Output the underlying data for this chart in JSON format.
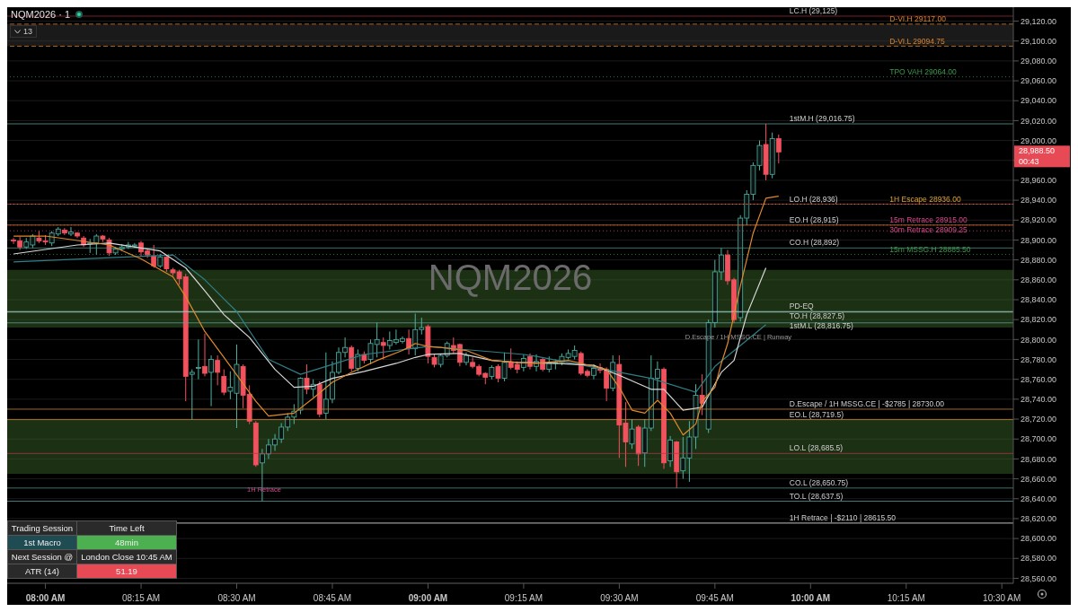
{
  "chart_data": {
    "type": "candlestick",
    "title": "NQM2026 · 1",
    "x": [
      7.9167,
      7.9333,
      7.95,
      7.9667,
      7.9833,
      8,
      8.0167,
      8.0333,
      8.05,
      8.0667,
      8.0833,
      8.1,
      8.1167,
      8.1333,
      8.15,
      8.1667,
      8.1833,
      8.2,
      8.2167,
      8.2333,
      8.25,
      8.2667,
      8.2833,
      8.3,
      8.3167,
      8.3333,
      8.35,
      8.3667,
      8.3833,
      8.4,
      8.4167,
      8.4333,
      8.45,
      8.4667,
      8.4833,
      8.5,
      8.5167,
      8.5333,
      8.55,
      8.5667,
      8.5833,
      8.6,
      8.6167,
      8.6333,
      8.65,
      8.6667,
      8.6833,
      8.7,
      8.7167,
      8.7333,
      8.75,
      8.7667,
      8.7833,
      8.8,
      8.8167,
      8.8333,
      8.85,
      8.8667,
      8.8833,
      8.9,
      8.9167,
      8.9333,
      8.95,
      8.9667,
      8.9833,
      9,
      9.0167,
      9.0333,
      9.05,
      9.0667,
      9.0833,
      9.1,
      9.1167,
      9.1333,
      9.15,
      9.1667,
      9.1833,
      9.2,
      9.2167,
      9.2333,
      9.25,
      9.2667,
      9.2833,
      9.3,
      9.3167,
      9.3333,
      9.35,
      9.3667,
      9.3833,
      9.4,
      9.4167,
      9.4333,
      9.45,
      9.4667,
      9.4833,
      9.5,
      9.5167,
      9.5333,
      9.55,
      9.5667,
      9.5833,
      9.6,
      9.6167,
      9.6333,
      9.65,
      9.6667,
      9.6833,
      9.7,
      9.7167,
      9.7333,
      9.75,
      9.7667,
      9.7833,
      9.8,
      9.8167,
      9.8333,
      9.85,
      9.8667,
      9.8833,
      9.9,
      9.9167
    ],
    "ohlc": [
      [
        28900,
        28902,
        28896,
        28899
      ],
      [
        28899,
        28903,
        28890,
        28893
      ],
      [
        28893,
        28902,
        28891,
        28898
      ],
      [
        28895,
        28906,
        28892,
        28904
      ],
      [
        28902,
        28909,
        28897,
        28899
      ],
      [
        28899,
        28905,
        28895,
        28898
      ],
      [
        28897,
        28909,
        28894,
        28907
      ],
      [
        28906,
        28913,
        28904,
        28911
      ],
      [
        28910,
        28912,
        28905,
        28907
      ],
      [
        28906,
        28913,
        28904,
        28908
      ],
      [
        28907,
        28908,
        28902,
        28904
      ],
      [
        28902,
        28904,
        28893,
        28895
      ],
      [
        28896,
        28901,
        28887,
        28897
      ],
      [
        28897,
        28906,
        28885,
        28904
      ],
      [
        28904,
        28905,
        28898,
        28901
      ],
      [
        28900,
        28902,
        28884,
        28887
      ],
      [
        28887,
        28893,
        28885,
        28891
      ],
      [
        28891,
        28896,
        28889,
        28893
      ],
      [
        28893,
        28898,
        28891,
        28895
      ],
      [
        28894,
        28897,
        28892,
        28895
      ],
      [
        28897,
        28899,
        28884,
        28888
      ],
      [
        28889,
        28891,
        28882,
        28885
      ],
      [
        28884,
        28895,
        28872,
        28874
      ],
      [
        28874,
        28886,
        28872,
        28883
      ],
      [
        28883,
        28884,
        28868,
        28871
      ],
      [
        28870,
        28872,
        28864,
        28867
      ],
      [
        28868,
        28870,
        28855,
        28861
      ],
      [
        28863,
        28866,
        28738,
        28763
      ],
      [
        28765,
        28770,
        28719.5,
        28767
      ],
      [
        28771,
        28800,
        28760,
        28772
      ],
      [
        28773,
        28806,
        28763,
        28766
      ],
      [
        28767,
        28784,
        28733,
        28780
      ],
      [
        28779,
        28784,
        28754,
        28767
      ],
      [
        28763,
        28770,
        28744,
        28747
      ],
      [
        28748,
        28768,
        28740,
        28752
      ],
      [
        28746,
        28795,
        28711,
        28775
      ],
      [
        28773,
        28775,
        28731,
        28744
      ],
      [
        28745,
        28754,
        28715,
        28718
      ],
      [
        28716,
        28718,
        28672,
        28674
      ],
      [
        28676,
        28690,
        28637.5,
        28685
      ],
      [
        28685,
        28700,
        28680,
        28694
      ],
      [
        28694,
        28705,
        28688,
        28700
      ],
      [
        28700,
        28716,
        28696,
        28712
      ],
      [
        28712,
        28726,
        28708,
        28722
      ],
      [
        28722,
        28735,
        28715,
        28728
      ],
      [
        28729,
        28762,
        28725,
        28761
      ],
      [
        28761,
        28775,
        28745,
        28750
      ],
      [
        28750,
        28760,
        28742,
        28755
      ],
      [
        28755,
        28758,
        28722,
        28725
      ],
      [
        28726,
        28787,
        28720,
        28740
      ],
      [
        28740,
        28778,
        28736,
        28767
      ],
      [
        28767,
        28792,
        28765,
        28787
      ],
      [
        28787,
        28802,
        28782,
        28792
      ],
      [
        28792,
        28794,
        28768,
        28771
      ],
      [
        28771,
        28790,
        28768,
        28785
      ],
      [
        28785,
        28788,
        28776,
        28779
      ],
      [
        28780,
        28800,
        28775,
        28796
      ],
      [
        28795,
        28817,
        28782,
        28800
      ],
      [
        28797,
        28802,
        28780,
        28794
      ],
      [
        28794,
        28808,
        28790,
        28799
      ],
      [
        28797,
        28810,
        28795,
        28800
      ],
      [
        28798,
        28803,
        28796,
        28801
      ],
      [
        28801,
        28810,
        28785,
        28791
      ],
      [
        28791,
        28826,
        28784,
        28810
      ],
      [
        28810,
        28822,
        28805,
        28812
      ],
      [
        28813,
        28815,
        28776,
        28783
      ],
      [
        28782,
        28785,
        28772,
        28775
      ],
      [
        28775,
        28786,
        28772,
        28784
      ],
      [
        28784,
        28798,
        28782,
        28796
      ],
      [
        28794,
        28802,
        28786,
        28789
      ],
      [
        28795,
        28796,
        28773,
        28777
      ],
      [
        28777,
        28787,
        28774,
        28784
      ],
      [
        28777,
        28782,
        28771,
        28773
      ],
      [
        28773,
        28775,
        28763,
        28765
      ],
      [
        28766,
        28767,
        28755,
        28762
      ],
      [
        28763,
        28774,
        28760,
        28772
      ],
      [
        28773,
        28775,
        28757,
        28761
      ],
      [
        28761,
        28787,
        28758,
        28777
      ],
      [
        28777,
        28791,
        28770,
        28772
      ],
      [
        28775,
        28778,
        28766,
        28770
      ],
      [
        28772,
        28785,
        28768,
        28781
      ],
      [
        28783,
        28786,
        28770,
        28773
      ],
      [
        28773,
        28785,
        28768,
        28778
      ],
      [
        28780,
        28782,
        28768,
        28770
      ],
      [
        28770,
        28783,
        28767,
        28776
      ],
      [
        28776,
        28780,
        28770,
        28777
      ],
      [
        28777,
        28786,
        28774,
        28783
      ],
      [
        28782,
        28790,
        28780,
        28786
      ],
      [
        28783,
        28794,
        28780,
        28789
      ],
      [
        28786,
        28788,
        28764,
        28766
      ],
      [
        28768,
        28770,
        28762,
        28764
      ],
      [
        28764,
        28775,
        28760,
        28771
      ],
      [
        28772,
        28776,
        28766,
        28769
      ],
      [
        28770,
        28772,
        28738,
        28751
      ],
      [
        28751,
        28784,
        28748,
        28777
      ],
      [
        28775,
        28784,
        28681,
        28714
      ],
      [
        28716,
        28737,
        28672,
        28697
      ],
      [
        28695,
        28720,
        28690,
        28710
      ],
      [
        28712,
        28714,
        28673,
        28685
      ],
      [
        28686,
        28720,
        28672,
        28711
      ],
      [
        28711,
        28784,
        28708,
        28761
      ],
      [
        28761,
        28778,
        28740,
        28770
      ],
      [
        28770,
        28772,
        28670,
        28676
      ],
      [
        28678,
        28703,
        28672,
        28699
      ],
      [
        28697,
        28698,
        28650.75,
        28667
      ],
      [
        28668,
        28702,
        28660,
        28681
      ],
      [
        28681,
        28718,
        28657,
        28702
      ],
      [
        28702,
        28755,
        28690,
        28744
      ],
      [
        28744,
        28765,
        28724,
        28736
      ],
      [
        28710,
        28820,
        28706,
        28817
      ],
      [
        28817,
        28880,
        28812,
        28868
      ],
      [
        28868,
        28892,
        28860,
        28885
      ],
      [
        28885,
        28890,
        28855,
        28859
      ],
      [
        28860,
        28862,
        28816.75,
        28820
      ],
      [
        28822,
        28925,
        28818,
        28922
      ],
      [
        28922,
        28950,
        28915,
        28946
      ],
      [
        28946,
        28978,
        28940,
        28975
      ],
      [
        28975,
        29000,
        28970,
        28995
      ],
      [
        28996,
        29016.75,
        28960,
        28966
      ],
      [
        28966,
        29008,
        28962,
        29002
      ],
      [
        29002,
        29006,
        28977,
        28988.5
      ]
    ],
    "colors": [
      "#f2525e",
      "#f2525e",
      "#4fb3a3",
      "#4fb3a3",
      "#f2525e",
      "#f2525e",
      "#4fb3a3",
      "#4fb3a3",
      "#f2525e",
      "#4fb3a3",
      "#f2525e",
      "#f2525e",
      "#4fb3a3",
      "#4fb3a3",
      "#f2525e",
      "#f2525e",
      "#4fb3a3",
      "#4fb3a3",
      "#4fb3a3",
      "#4fb3a3",
      "#f2525e",
      "#f2525e",
      "#f2525e",
      "#4fb3a3",
      "#f2525e",
      "#f2525e",
      "#f2525e",
      "#f2525e",
      "#4fb3a3",
      "#4fb3a3",
      "#f2525e",
      "#4fb3a3",
      "#f2525e",
      "#f2525e",
      "#4fb3a3",
      "#4fb3a3",
      "#f2525e",
      "#f2525e",
      "#f2525e",
      "#4fb3a3",
      "#4fb3a3",
      "#4fb3a3",
      "#4fb3a3",
      "#4fb3a3",
      "#4fb3a3",
      "#4fb3a3",
      "#f2525e",
      "#4fb3a3",
      "#f2525e",
      "#4fb3a3",
      "#4fb3a3",
      "#4fb3a3",
      "#4fb3a3",
      "#f2525e",
      "#4fb3a3",
      "#f2525e",
      "#4fb3a3",
      "#4fb3a3",
      "#f2525e",
      "#4fb3a3",
      "#4fb3a3",
      "#4fb3a3",
      "#f2525e",
      "#4fb3a3",
      "#4fb3a3",
      "#f2525e",
      "#f2525e",
      "#4fb3a3",
      "#4fb3a3",
      "#f2525e",
      "#f2525e",
      "#4fb3a3",
      "#f2525e",
      "#f2525e",
      "#f2525e",
      "#4fb3a3",
      "#f2525e",
      "#4fb3a3",
      "#f2525e",
      "#f2525e",
      "#4fb3a3",
      "#f2525e",
      "#4fb3a3",
      "#f2525e",
      "#4fb3a3",
      "#4fb3a3",
      "#4fb3a3",
      "#4fb3a3",
      "#4fb3a3",
      "#f2525e",
      "#f2525e",
      "#4fb3a3",
      "#f2525e",
      "#f2525e",
      "#4fb3a3",
      "#f2525e",
      "#f2525e",
      "#4fb3a3",
      "#f2525e",
      "#4fb3a3",
      "#4fb3a3",
      "#4fb3a3",
      "#f2525e",
      "#4fb3a3",
      "#f2525e",
      "#4fb3a3",
      "#4fb3a3",
      "#4fb3a3",
      "#f2525e",
      "#4fb3a3",
      "#4fb3a3",
      "#4fb3a3",
      "#f2525e",
      "#f2525e",
      "#4fb3a3",
      "#4fb3a3",
      "#4fb3a3",
      "#4fb3a3",
      "#f2525e",
      "#4fb3a3",
      "#f2525e"
    ],
    "series": [
      {
        "type": "line",
        "color": "#e08a2b",
        "x": [
          7.9167,
          8,
          8.1667,
          8.25,
          8.3333,
          8.3667,
          8.4167,
          8.4667,
          8.55,
          8.5833,
          8.65,
          8.7,
          8.75,
          8.8,
          8.8667,
          8.9333,
          8.9667,
          9,
          9.0333,
          9.1,
          9.1667,
          9.2333,
          9.2833,
          9.3667,
          9.4333,
          9.4667,
          9.5,
          9.5333,
          9.5667,
          9.6,
          9.6333,
          9.6667,
          9.7,
          9.7167,
          9.75,
          9.7667,
          9.7833,
          9.8167,
          9.85,
          9.8833,
          9.9167
        ],
        "values": [
          28904,
          28904,
          28895,
          28881,
          28863,
          28843,
          28808,
          28782,
          28738,
          28723,
          28726,
          28741,
          28757,
          28767,
          28779,
          28789,
          28796,
          28793,
          28792,
          28789,
          28779,
          28777,
          28776,
          28779,
          28773,
          28770,
          28752,
          28729,
          28726,
          28739,
          28726,
          28704,
          28715,
          28738,
          28752,
          28776,
          28796,
          28854,
          28907,
          28942,
          28944
        ]
      },
      {
        "type": "line",
        "color": "#d8d8d8",
        "x": [
          7.9167,
          8.0833,
          8.1667,
          8.3,
          8.3667,
          8.4167,
          8.4667,
          8.5333,
          8.6,
          8.65,
          8.7,
          8.75,
          8.8333,
          8.9167,
          8.9667,
          9,
          9.0833,
          9.1667,
          9.2333,
          9.3333,
          9.4333,
          9.5,
          9.5833,
          9.6167,
          9.6667,
          9.7167,
          9.7667,
          9.8,
          9.8333,
          9.8833
        ],
        "values": [
          28886,
          28895,
          28897,
          28889,
          28872,
          28849,
          28825,
          28802,
          28770,
          28752,
          28753,
          28761,
          28768,
          28776,
          28782,
          28785,
          28786,
          28779,
          28777,
          28776,
          28774,
          28764,
          28750,
          28750,
          28729,
          28732,
          28767,
          28779,
          28825,
          28872
        ]
      },
      {
        "type": "line",
        "color": "#2f7f86",
        "x": [
          7.9167,
          8.3333,
          8.4167,
          8.5,
          8.5833,
          8.6667,
          8.75,
          8.8333,
          9,
          9.25,
          9.2833,
          9.5833,
          9.7,
          9.75,
          9.8833
        ],
        "values": [
          28878,
          28885,
          28860,
          28828,
          28780,
          28765,
          28775,
          28785,
          28793,
          28785,
          28783,
          28761,
          28747,
          28773,
          28815
        ]
      }
    ],
    "xlim": [
      7.9,
      10.53
    ],
    "ylim": [
      28555,
      29134
    ],
    "xticks": [
      {
        "value": 8,
        "label": "08:00 AM"
      },
      {
        "value": 8.25,
        "label": "08:15 AM"
      },
      {
        "value": 8.5,
        "label": "08:30 AM"
      },
      {
        "value": 8.75,
        "label": "08:45 AM"
      },
      {
        "value": 9,
        "label": "09:00 AM"
      },
      {
        "value": 9.25,
        "label": "09:15 AM"
      },
      {
        "value": 9.5,
        "label": "09:30 AM"
      },
      {
        "value": 9.75,
        "label": "09:45 AM"
      },
      {
        "value": 10,
        "label": "10:00 AM"
      },
      {
        "value": 10.25,
        "label": "10:15 AM"
      },
      {
        "value": 10.5,
        "label": "10:30 AM"
      }
    ],
    "yticks": [
      {
        "value": 28560,
        "label": "28,560.00"
      },
      {
        "value": 28580,
        "label": "28,580.00"
      },
      {
        "value": 28600,
        "label": "28,600.00"
      },
      {
        "value": 28620,
        "label": "28,620.00"
      },
      {
        "value": 28640,
        "label": "28,640.00"
      },
      {
        "value": 28660,
        "label": "28,660.00"
      },
      {
        "value": 28680,
        "label": "28,680.00"
      },
      {
        "value": 28700,
        "label": "28,700.00"
      },
      {
        "value": 28720,
        "label": "28,720.00"
      },
      {
        "value": 28740,
        "label": "28,740.00"
      },
      {
        "value": 28760,
        "label": "28,760.00"
      },
      {
        "value": 28780,
        "label": "28,780.00"
      },
      {
        "value": 28800,
        "label": "28,800.00"
      },
      {
        "value": 28820,
        "label": "28,820.00"
      },
      {
        "value": 28840,
        "label": "28,840.00"
      },
      {
        "value": 28860,
        "label": "28,860.00"
      },
      {
        "value": 28880,
        "label": "28,880.00"
      },
      {
        "value": 28900,
        "label": "28,900.00"
      },
      {
        "value": 28920,
        "label": "28,920.00"
      },
      {
        "value": 28940,
        "label": "28,940.00"
      },
      {
        "value": 28960,
        "label": "28,960.00"
      },
      {
        "value": 28980,
        "label": null
      },
      {
        "value": 29000,
        "label": "29,000.00"
      },
      {
        "value": 29020,
        "label": "29,020.00"
      },
      {
        "value": 29040,
        "label": "29,040.00"
      },
      {
        "value": 29060,
        "label": "29,060.00"
      },
      {
        "value": 29080,
        "label": "29,080.00"
      },
      {
        "value": 29100,
        "label": "29,100.00"
      },
      {
        "value": 29120,
        "label": "29,120.00"
      }
    ],
    "grid": "y",
    "legend": false,
    "ref_lines": [
      {
        "axis": "y",
        "value": 29125,
        "label": "LC.H (29,125)",
        "color": "#9c2b3c",
        "line_style": "solid"
      },
      {
        "axis": "y",
        "value": 29117,
        "label": "D-VI.H  29117.00",
        "color": "#d9822b",
        "line_style": "dashed"
      },
      {
        "axis": "y",
        "value": 29094.75,
        "label": "D-VI.L  29094.75",
        "color": "#d9822b",
        "line_style": "dashed"
      },
      {
        "axis": "y",
        "value": 29064,
        "label": "TPO VAH  29064.00",
        "color": "#3a9a4a",
        "line_style": "dotted"
      },
      {
        "axis": "y",
        "value": 29016.75,
        "label": "1stM.H (29,016.75)",
        "color": "#5aa6a0",
        "line_style": "solid"
      },
      {
        "axis": "y",
        "value": 28936,
        "label": "LO.H (28,936)",
        "color": "#b03a4a",
        "line_style": "solid"
      },
      {
        "axis": "y",
        "value": 28936,
        "label": "1H Escape  28936.00",
        "color": "#e0a030",
        "line_style": "dotted"
      },
      {
        "axis": "y",
        "value": 28915,
        "label": "EO.H (28,915)",
        "color": "#d9822b",
        "line_style": "solid"
      },
      {
        "axis": "y",
        "value": 28915,
        "label": "15m Retrace  28915.00",
        "color": "#d9488a",
        "line_style": "dotted"
      },
      {
        "axis": "y",
        "value": 28909.25,
        "label": "30m Retrace  28909.25",
        "color": "#d9488a",
        "line_style": "dotted"
      },
      {
        "axis": "y",
        "value": 28892,
        "label": "CO.H (28,892)",
        "color": "#4a9a8a",
        "line_style": "solid"
      },
      {
        "axis": "y",
        "value": 28885.5,
        "label": "15m MSSG.H  28885.50",
        "color": "#3a9a4a",
        "line_style": "dotted"
      },
      {
        "axis": "y",
        "value": 28828,
        "label": "PD-EQ",
        "color": "#ffffff",
        "line_style": "solid"
      },
      {
        "axis": "y",
        "value": 28827.5,
        "label": "TO.H (28,827.5)",
        "color": "#5aa6a0",
        "line_style": "solid"
      },
      {
        "axis": "y",
        "value": 28816.75,
        "label": "1stM.L (28,816.75)",
        "color": "#5aa6a0",
        "line_style": "solid"
      },
      {
        "axis": "y",
        "value": 28730,
        "label": "D.Escape / 1H MSSG.CE | -$2785 | 28730.00",
        "color": "#d9822b",
        "line_style": "solid"
      },
      {
        "axis": "y",
        "value": 28719.5,
        "label": "EO.L (28,719.5)",
        "color": "#d9822b",
        "line_style": "solid"
      },
      {
        "axis": "y",
        "value": 28685.5,
        "label": "LO.L (28,685.5)",
        "color": "#b03a4a",
        "line_style": "solid"
      },
      {
        "axis": "y",
        "value": 28650.75,
        "label": "CO.L (28,650.75)",
        "color": "#4a9a8a",
        "line_style": "solid"
      },
      {
        "axis": "y",
        "value": 28637.5,
        "label": "TO.L (28,637.5)",
        "color": "#5aa6a0",
        "line_style": "solid"
      },
      {
        "axis": "y",
        "value": 28615.5,
        "label": "1H Retrace | -$2110 | 28615.50",
        "color": "#ffffff",
        "line_style": "solid"
      }
    ],
    "bands": [
      {
        "axis": "y",
        "from": 29094.75,
        "to": 29117,
        "color": "#3a3a3a"
      },
      {
        "axis": "y",
        "from": 28665,
        "to": 28720,
        "color": "#3f6b2a"
      },
      {
        "axis": "y",
        "from": 28812,
        "to": 28870,
        "color": "#3f6b2a"
      }
    ],
    "annotations": [
      "13",
      "NQM2026",
      "Trading Session",
      "Time Left",
      "1st Macro",
      "48min",
      "Next Session @",
      "London Close  10:45 AM",
      "ATR (14)",
      "51.19",
      "1H Retrace",
      "D.Escape / 1H MSSG.CE | Runway",
      "28,988.50",
      "00:43"
    ]
  }
}
